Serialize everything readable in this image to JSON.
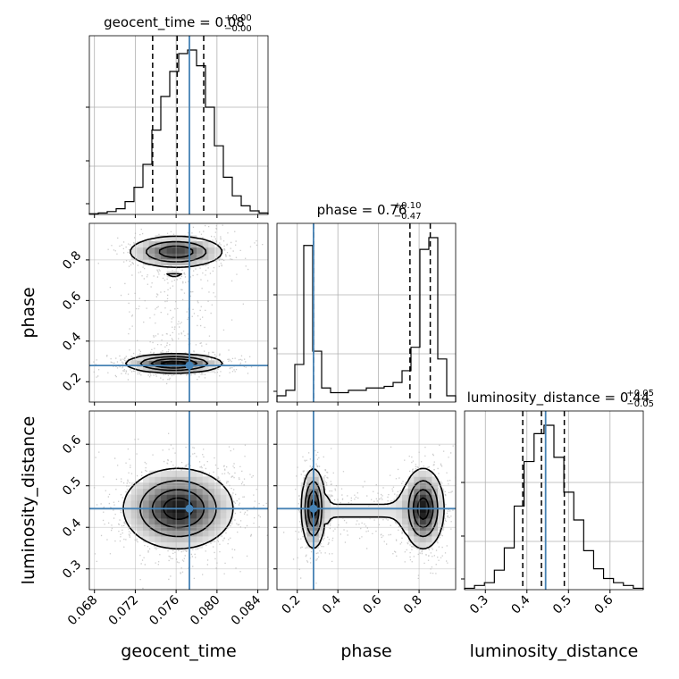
{
  "chart_data": {
    "type": "corner",
    "truth_color": "#4682b4",
    "parameters": [
      "geocent_time",
      "phase",
      "luminosity_distance"
    ],
    "axis_labels": [
      "geocent_time",
      "phase",
      "luminosity_distance"
    ],
    "ranges": [
      [
        0.0675,
        0.085
      ],
      [
        0.1,
        0.98
      ],
      [
        0.25,
        0.68
      ]
    ],
    "ticks": [
      [
        0.068,
        0.072,
        0.076,
        0.08,
        0.084
      ],
      [
        0.2,
        0.4,
        0.6,
        0.8
      ],
      [
        0.3,
        0.4,
        0.5,
        0.6
      ]
    ],
    "tick_labels": [
      [
        "0.068",
        "0.072",
        "0.076",
        "0.080",
        "0.084"
      ],
      [
        "0.2",
        "0.4",
        "0.6",
        "0.8"
      ],
      [
        "0.3",
        "0.4",
        "0.5",
        "0.6"
      ]
    ],
    "truths": [
      0.0773,
      0.28,
      0.445
    ],
    "titles": [
      {
        "name": "geocent_time",
        "median": "0.08",
        "upper": "+0.00",
        "lower": "−0.00",
        "quantiles": [
          0.0737,
          0.0761,
          0.0787
        ]
      },
      {
        "name": "phase",
        "median": "0.76",
        "upper": "+0.10",
        "lower": "−0.47",
        "quantiles": [
          0.28,
          0.755,
          0.855
        ]
      },
      {
        "name": "luminosity_distance",
        "median": "0.44",
        "upper": "+0.05",
        "lower": "−0.05",
        "quantiles": [
          0.39,
          0.435,
          0.49
        ]
      }
    ],
    "histograms": [
      {
        "edges": [
          0.0675,
          0.085
        ],
        "counts": [
          1,
          2,
          4,
          8,
          18,
          38,
          70,
          118,
          165,
          200,
          225,
          230,
          208,
          150,
          96,
          52,
          26,
          12,
          5,
          2
        ]
      },
      {
        "edges": [
          0.1,
          0.98
        ],
        "counts": [
          8,
          15,
          48,
          200,
          65,
          18,
          12,
          12,
          15,
          15,
          18,
          18,
          20,
          25,
          40,
          70,
          195,
          210,
          55,
          8
        ]
      },
      {
        "edges": [
          0.25,
          0.68
        ],
        "counts": [
          1,
          3,
          5,
          14,
          30,
          60,
          92,
          112,
          118,
          95,
          70,
          50,
          28,
          15,
          8,
          5,
          3,
          1
        ]
      }
    ],
    "density_2d": [
      {
        "x": "geocent_time",
        "y": "phase",
        "modes": [
          {
            "cx": 0.076,
            "cy": 0.84,
            "sx": 0.0022,
            "sy": 0.037,
            "w": 1.0
          },
          {
            "cx": 0.0758,
            "cy": 0.29,
            "sx": 0.0022,
            "sy": 0.022,
            "w": 1.25
          }
        ],
        "bridge": {
          "cx": 0.0758,
          "y0": 0.38,
          "y1": 0.74,
          "sx": 0.002,
          "w": 0.12
        }
      },
      {
        "x": "geocent_time",
        "y": "luminosity_distance",
        "modes": [
          {
            "cx": 0.0762,
            "cy": 0.445,
            "sx": 0.0025,
            "sy": 0.045,
            "w": 1.0
          }
        ]
      },
      {
        "x": "phase",
        "y": "luminosity_distance",
        "modes": [
          {
            "cx": 0.28,
            "cy": 0.445,
            "sx": 0.028,
            "sy": 0.045,
            "w": 1.0
          },
          {
            "cx": 0.82,
            "cy": 0.445,
            "sx": 0.048,
            "sy": 0.045,
            "w": 1.05
          }
        ],
        "bridge": {
          "cy": 0.44,
          "x0": 0.34,
          "x1": 0.74,
          "sy": 0.03,
          "w": 0.12
        }
      }
    ],
    "contour_levels": [
      0.1,
      0.33,
      0.6,
      0.85
    ],
    "grid": true,
    "legend": "none"
  }
}
